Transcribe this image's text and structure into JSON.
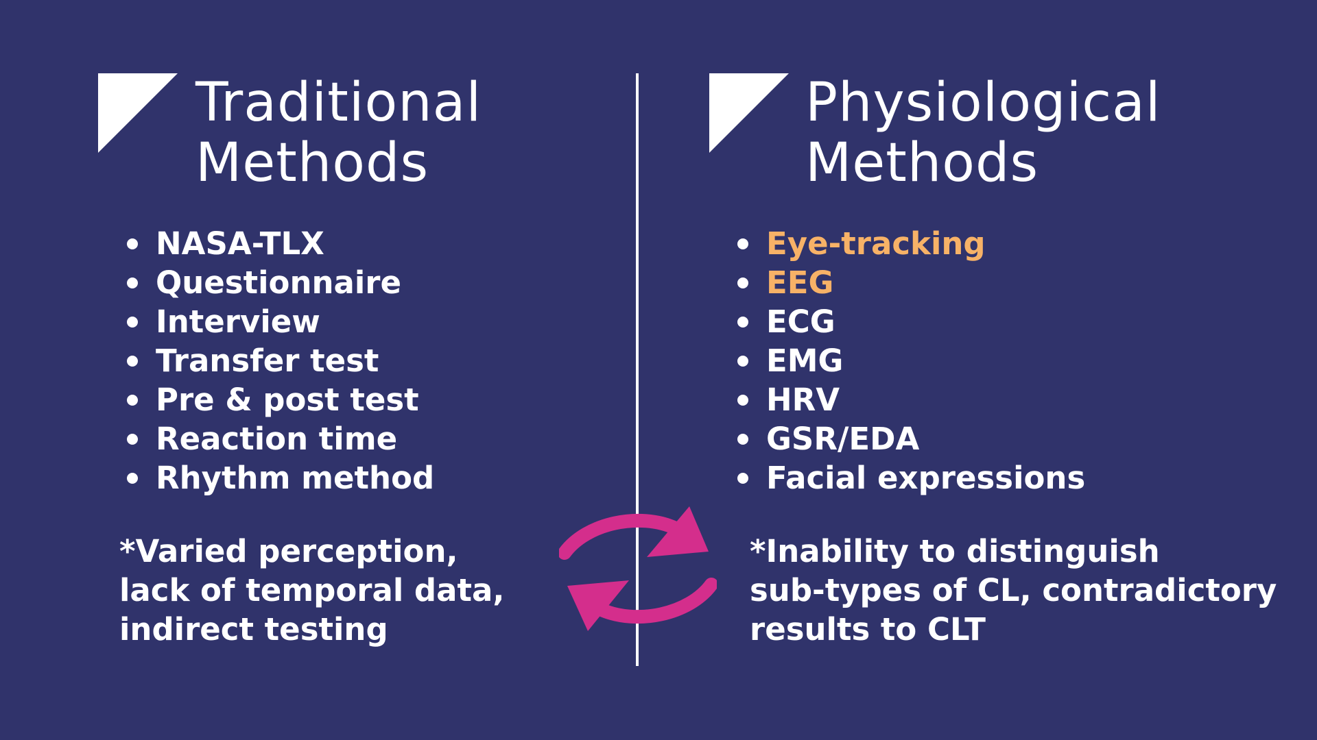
{
  "left": {
    "title_line1": "Traditional",
    "title_line2": "Methods",
    "items": [
      {
        "label": "NASA-TLX"
      },
      {
        "label": "Questionnaire"
      },
      {
        "label": "Interview"
      },
      {
        "label": "Transfer test"
      },
      {
        "label": "Pre & post test"
      },
      {
        "label": "Reaction time"
      },
      {
        "label": "Rhythm method"
      }
    ],
    "note_lines": [
      "*Varied perception,",
      "lack of temporal data,",
      "indirect testing"
    ]
  },
  "right": {
    "title_line1": "Physiological",
    "title_line2": "Methods",
    "items": [
      {
        "label": "Eye-tracking"
      },
      {
        "label": "EEG"
      },
      {
        "label": "ECG"
      },
      {
        "label": "EMG"
      },
      {
        "label": "HRV"
      },
      {
        "label": "GSR/EDA"
      },
      {
        "label": "Facial expressions"
      }
    ],
    "note_lines": [
      "*Inability to distinguish",
      "sub-types of CL, contradictory",
      "results to CLT"
    ]
  },
  "colors": {
    "background": "#30336b",
    "text": "#ffffff",
    "highlight": "#f7b267",
    "arrows": "#d42e8c"
  },
  "icons": {
    "corner": "corner-triangle-icon",
    "exchange": "cycle-arrows-icon"
  }
}
